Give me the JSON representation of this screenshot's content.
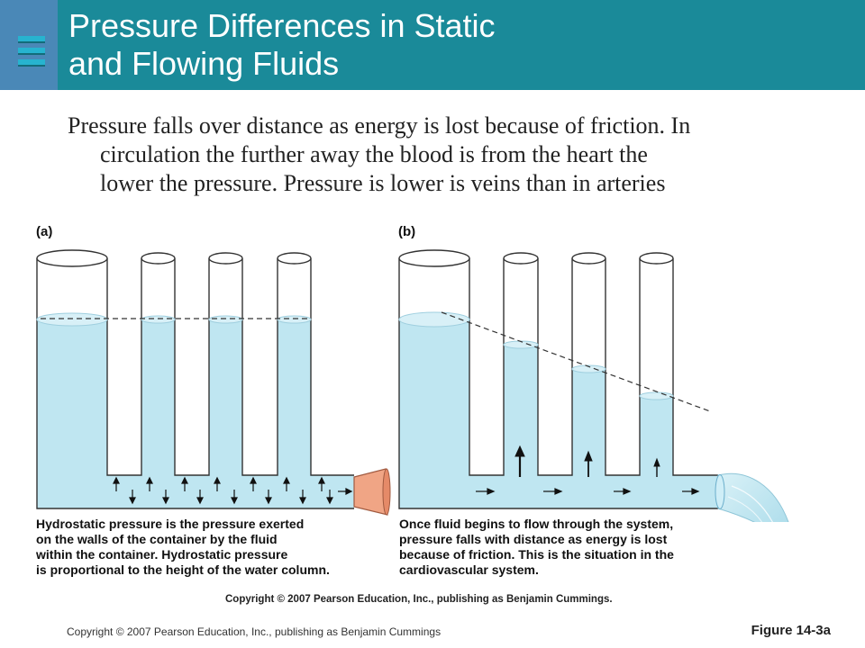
{
  "slide": {
    "title_line1": "Pressure Differences in Static",
    "title_line2": "and Flowing Fluids",
    "body_line1": "Pressure falls over distance as energy is lost because of friction. In",
    "body_line2": "circulation the further away the blood is from the heart the",
    "body_line3": "lower the pressure. Pressure is lower is veins than in arteries",
    "menu_icon": "list-icon"
  },
  "figure": {
    "panel_a_label": "(a)",
    "panel_b_label": "(b)",
    "caption_a": [
      "Hydrostatic pressure is the pressure exerted",
      "on the walls of the container by the fluid",
      "within the container. Hydrostatic pressure",
      "is proportional to the height of the water column."
    ],
    "caption_b": [
      "Once fluid begins to flow through the system,",
      "pressure falls with distance as energy is lost",
      "because of friction. This is the situation in the",
      "cardiovascular system."
    ],
    "copyright": "Copyright © 2007 Pearson Education, Inc., publishing as Benjamin Cummings."
  },
  "footer": {
    "copyright": "Copyright © 2007 Pearson Education, Inc., publishing as Benjamin Cummings",
    "figure_label": "Figure 14-3a"
  },
  "colors": {
    "header": "#1a8a99",
    "header_tab": "#4a88b7",
    "water": "#bfe6f1",
    "stopper": "#f0a585"
  }
}
